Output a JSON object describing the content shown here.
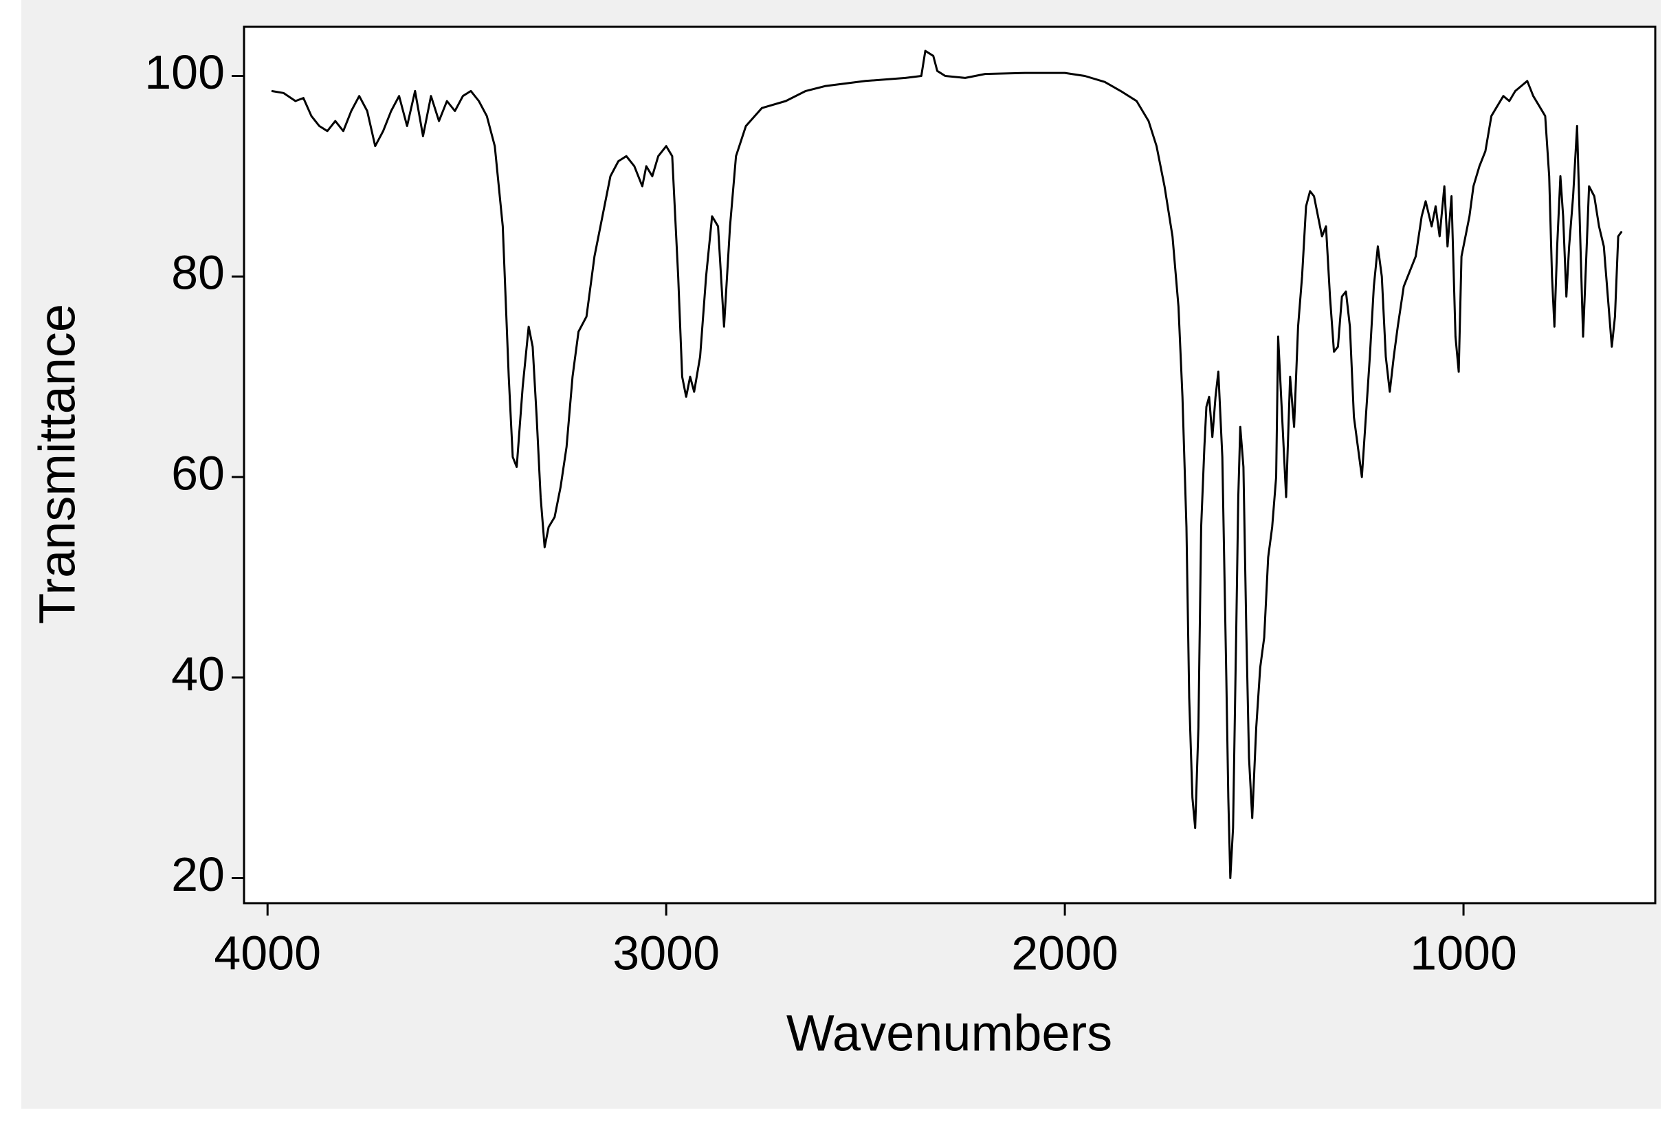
{
  "chart_data": {
    "type": "line",
    "x_label": "Wavenumbers",
    "y_label": "Transmittance",
    "color": "#000000",
    "xlim": [
      4059,
      519
    ],
    "ylim": [
      17.5,
      104.9
    ],
    "xticks": [
      4000,
      3000,
      2000,
      1000
    ],
    "yticks": [
      20,
      40,
      60,
      80,
      100
    ],
    "x": [
      3990,
      3960,
      3930,
      3910,
      3890,
      3870,
      3850,
      3830,
      3810,
      3790,
      3770,
      3750,
      3730,
      3710,
      3690,
      3670,
      3650,
      3630,
      3610,
      3590,
      3570,
      3550,
      3530,
      3510,
      3490,
      3470,
      3450,
      3430,
      3410,
      3395,
      3385,
      3375,
      3360,
      3345,
      3335,
      3325,
      3315,
      3305,
      3295,
      3280,
      3265,
      3250,
      3235,
      3220,
      3200,
      3180,
      3160,
      3140,
      3120,
      3100,
      3080,
      3060,
      3050,
      3035,
      3020,
      3000,
      2985,
      2970,
      2960,
      2950,
      2940,
      2930,
      2915,
      2900,
      2885,
      2870,
      2855,
      2840,
      2825,
      2800,
      2760,
      2700,
      2650,
      2600,
      2500,
      2400,
      2360,
      2350,
      2330,
      2320,
      2300,
      2250,
      2200,
      2100,
      2000,
      1950,
      1900,
      1860,
      1820,
      1790,
      1770,
      1750,
      1730,
      1715,
      1705,
      1695,
      1688,
      1680,
      1673,
      1665,
      1658,
      1650,
      1645,
      1638,
      1630,
      1622,
      1615,
      1605,
      1595,
      1590,
      1585,
      1578,
      1570,
      1565,
      1560,
      1552,
      1545,
      1538,
      1530,
      1520,
      1510,
      1500,
      1490,
      1480,
      1470,
      1465,
      1455,
      1445,
      1435,
      1425,
      1415,
      1405,
      1395,
      1385,
      1375,
      1365,
      1355,
      1345,
      1335,
      1325,
      1315,
      1305,
      1295,
      1285,
      1275,
      1265,
      1255,
      1245,
      1235,
      1225,
      1215,
      1205,
      1195,
      1185,
      1175,
      1165,
      1150,
      1135,
      1120,
      1105,
      1095,
      1080,
      1070,
      1060,
      1048,
      1040,
      1030,
      1020,
      1012,
      1005,
      995,
      985,
      975,
      960,
      945,
      930,
      915,
      900,
      885,
      870,
      855,
      840,
      825,
      810,
      795,
      785,
      778,
      772,
      765,
      757,
      750,
      742,
      735,
      725,
      715,
      708,
      700,
      692,
      685,
      672,
      660,
      648,
      638,
      628,
      620,
      612,
      603
    ],
    "values": [
      98.5,
      98.3,
      97.5,
      97.8,
      96,
      95,
      94.5,
      95.5,
      94.5,
      96.5,
      98,
      96.5,
      93,
      94.5,
      96.5,
      98,
      95,
      98.5,
      94,
      98,
      95.5,
      97.5,
      96.5,
      98,
      98.5,
      97.5,
      96,
      93,
      85,
      70,
      62,
      61,
      69,
      75,
      73,
      66,
      58,
      53,
      55,
      56,
      59,
      63,
      70,
      74.5,
      76,
      82,
      86,
      90,
      91.5,
      92,
      91,
      89,
      91,
      90,
      92,
      93,
      92,
      80,
      70,
      68,
      70,
      68.5,
      72,
      80,
      86,
      85,
      75,
      85,
      92,
      95,
      96.8,
      97.5,
      98.5,
      99,
      99.5,
      99.8,
      100,
      102.5,
      102,
      100.5,
      100,
      99.8,
      100.2,
      100.3,
      100.3,
      100,
      99.4,
      98.5,
      97.5,
      95.5,
      93,
      89,
      84,
      77,
      68,
      55,
      38,
      28,
      25,
      35,
      55,
      63,
      67,
      68,
      64,
      68,
      70.5,
      62,
      40,
      28,
      20,
      25,
      45,
      58,
      65,
      61,
      45,
      32,
      26,
      35,
      41,
      44,
      52,
      55,
      60,
      74,
      66,
      58,
      70,
      65,
      75,
      80,
      87,
      88.5,
      88,
      86,
      84,
      85,
      78,
      72.5,
      73,
      78,
      78.5,
      75,
      66,
      63,
      60,
      66,
      72,
      79,
      83,
      80,
      72,
      68.5,
      72,
      75,
      79,
      80.5,
      82,
      86,
      87.5,
      85,
      87,
      84,
      89,
      83,
      88,
      74,
      70.5,
      82,
      84,
      86,
      89,
      91,
      92.5,
      96,
      97,
      98,
      97.5,
      98.5,
      99,
      99.5,
      98,
      97,
      96,
      90,
      80,
      75,
      83,
      90,
      86,
      78,
      83,
      88,
      95,
      85,
      74,
      82,
      89,
      88,
      85,
      83,
      78,
      73,
      76,
      84,
      84.5
    ]
  }
}
